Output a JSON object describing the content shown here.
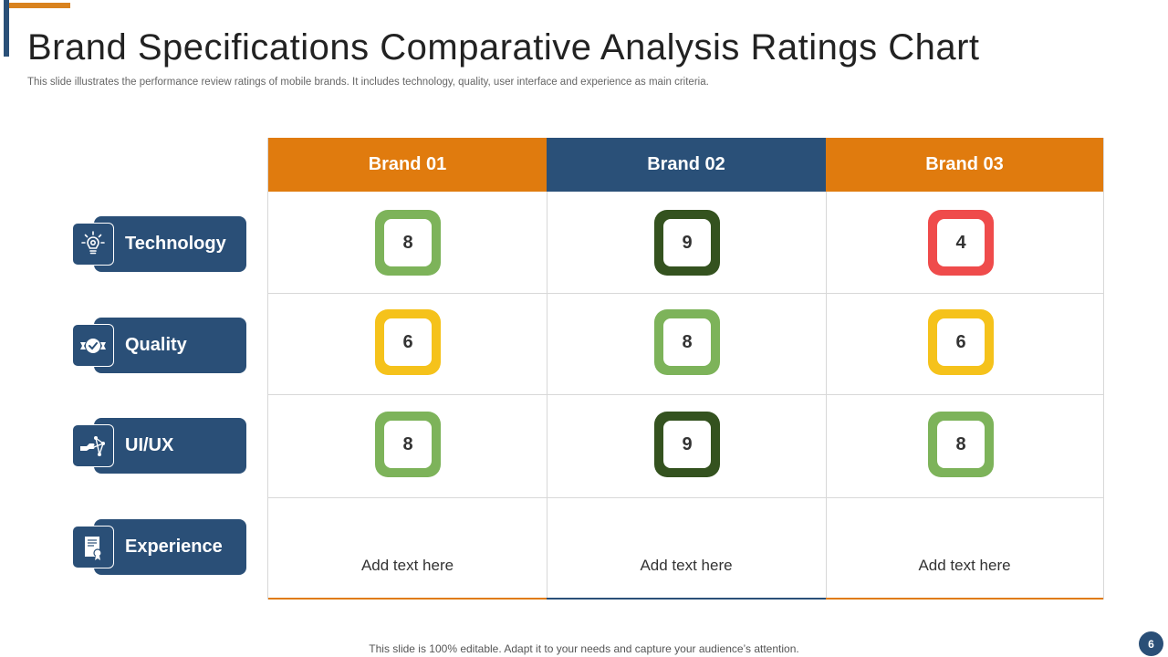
{
  "slide": {
    "title": "Brand Specifications Comparative Analysis Ratings Chart",
    "subtitle": "This slide illustrates the performance review ratings of mobile brands. It includes technology, quality, user interface and experience as main criteria.",
    "footer": "This slide is 100% editable. Adapt it to your needs and capture your audience’s attention.",
    "page_number": "6"
  },
  "colors": {
    "orange": "#e07b0e",
    "navy": "#2a5078",
    "light_green": "#7db35a",
    "dark_green": "#34521f",
    "yellow": "#f5c21b",
    "red": "#ef4b4b"
  },
  "criteria": [
    {
      "label": "Technology",
      "icon": "lightbulb-gear-icon"
    },
    {
      "label": "Quality",
      "icon": "quality-badge-icon"
    },
    {
      "label": "UI/UX",
      "icon": "touch-network-icon"
    },
    {
      "label": "Experience",
      "icon": "certificate-icon"
    }
  ],
  "brands": [
    "Brand 01",
    "Brand 02",
    "Brand 03"
  ],
  "ratings": [
    [
      {
        "value": "8",
        "color": "#7db35a"
      },
      {
        "value": "9",
        "color": "#34521f"
      },
      {
        "value": "4",
        "color": "#ef4b4b"
      }
    ],
    [
      {
        "value": "6",
        "color": "#f5c21b"
      },
      {
        "value": "8",
        "color": "#7db35a"
      },
      {
        "value": "6",
        "color": "#f5c21b"
      }
    ],
    [
      {
        "value": "8",
        "color": "#7db35a"
      },
      {
        "value": "9",
        "color": "#34521f"
      },
      {
        "value": "8",
        "color": "#7db35a"
      }
    ]
  ],
  "experience_texts": [
    "Add text here",
    "Add text here",
    "Add text here"
  ]
}
